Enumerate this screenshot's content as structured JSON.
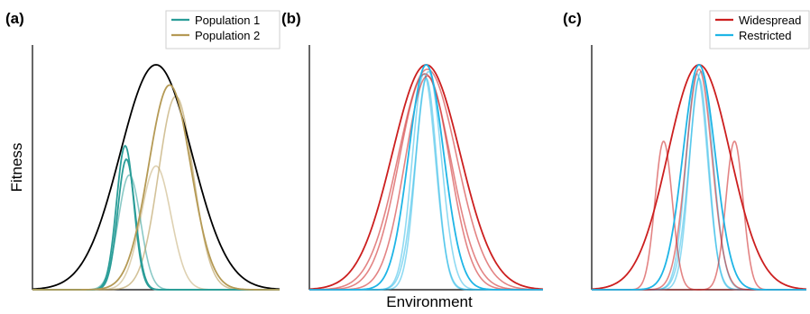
{
  "figure": {
    "ylabel": "Fitness",
    "xlabel": "Environment"
  },
  "colors": {
    "envelope": "#000000",
    "population1": "#2a9d98",
    "population2": "#b59a55",
    "widespread": "#cc1f1f",
    "restricted": "#1fb5e6"
  },
  "chart_data": [
    {
      "panel": "(a)",
      "type": "line",
      "xlim": [
        0,
        1
      ],
      "ylim": [
        0,
        1
      ],
      "grid": false,
      "legend": {
        "placement": "top-right",
        "entries": [
          "Population 1",
          "Population 2"
        ]
      },
      "series": [
        {
          "name": "",
          "color": "#000000",
          "opacity": 1.0,
          "mu": 0.5,
          "sigma": 0.145,
          "amp": 1.0
        },
        {
          "name": "Population 1",
          "color": "#2a9d98",
          "opacity": 1.0,
          "mu": 0.375,
          "sigma": 0.035,
          "amp": 0.64
        },
        {
          "name": "",
          "color": "#2a9d98",
          "opacity": 1.0,
          "mu": 0.38,
          "sigma": 0.035,
          "amp": 0.58
        },
        {
          "name": "",
          "color": "#2a9d98",
          "opacity": 0.55,
          "mu": 0.392,
          "sigma": 0.045,
          "amp": 0.51
        },
        {
          "name": "Population 2",
          "color": "#b59a55",
          "opacity": 1.0,
          "mu": 0.555,
          "sigma": 0.085,
          "amp": 0.91
        },
        {
          "name": "",
          "color": "#b59a55",
          "opacity": 0.6,
          "mu": 0.58,
          "sigma": 0.07,
          "amp": 0.86
        },
        {
          "name": "",
          "color": "#b59a55",
          "opacity": 0.45,
          "mu": 0.5,
          "sigma": 0.06,
          "amp": 0.55
        }
      ]
    },
    {
      "panel": "(b)",
      "type": "line",
      "xlim": [
        0,
        1
      ],
      "ylim": [
        0,
        1
      ],
      "grid": false,
      "legend": null,
      "series": [
        {
          "name": "",
          "color": "#cc1f1f",
          "opacity": 1.0,
          "mu": 0.5,
          "sigma": 0.145,
          "amp": 1.0
        },
        {
          "name": "",
          "color": "#cc1f1f",
          "opacity": 0.55,
          "mu": 0.505,
          "sigma": 0.125,
          "amp": 0.98
        },
        {
          "name": "",
          "color": "#cc1f1f",
          "opacity": 0.55,
          "mu": 0.495,
          "sigma": 0.11,
          "amp": 0.96
        },
        {
          "name": "",
          "color": "#cc1f1f",
          "opacity": 0.55,
          "mu": 0.505,
          "sigma": 0.095,
          "amp": 0.95
        },
        {
          "name": "",
          "color": "#1fb5e6",
          "opacity": 1.0,
          "mu": 0.5,
          "sigma": 0.075,
          "amp": 1.0
        },
        {
          "name": "",
          "color": "#1fb5e6",
          "opacity": 0.5,
          "mu": 0.51,
          "sigma": 0.055,
          "amp": 0.97
        },
        {
          "name": "",
          "color": "#1fb5e6",
          "opacity": 0.5,
          "mu": 0.49,
          "sigma": 0.05,
          "amp": 0.96
        },
        {
          "name": "",
          "color": "#1fb5e6",
          "opacity": 0.5,
          "mu": 0.5,
          "sigma": 0.045,
          "amp": 0.94
        }
      ]
    },
    {
      "panel": "(c)",
      "type": "line",
      "xlim": [
        0,
        1
      ],
      "ylim": [
        0,
        1
      ],
      "grid": false,
      "legend": {
        "placement": "top-right",
        "entries": [
          "Widespread",
          "Restricted"
        ]
      },
      "series": [
        {
          "name": "Widespread",
          "color": "#cc1f1f",
          "opacity": 1.0,
          "mu": 0.5,
          "sigma": 0.145,
          "amp": 1.0
        },
        {
          "name": "",
          "color": "#cc1f1f",
          "opacity": 0.55,
          "mu": 0.335,
          "sigma": 0.04,
          "amp": 0.66
        },
        {
          "name": "",
          "color": "#cc1f1f",
          "opacity": 0.55,
          "mu": 0.665,
          "sigma": 0.04,
          "amp": 0.66
        },
        {
          "name": "",
          "color": "#cc1f1f",
          "opacity": 0.55,
          "mu": 0.5,
          "sigma": 0.06,
          "amp": 0.98
        },
        {
          "name": "Restricted",
          "color": "#1fb5e6",
          "opacity": 1.0,
          "mu": 0.5,
          "sigma": 0.075,
          "amp": 1.0
        },
        {
          "name": "",
          "color": "#1fb5e6",
          "opacity": 0.5,
          "mu": 0.51,
          "sigma": 0.055,
          "amp": 0.97
        },
        {
          "name": "",
          "color": "#1fb5e6",
          "opacity": 0.5,
          "mu": 0.49,
          "sigma": 0.05,
          "amp": 0.96
        },
        {
          "name": "",
          "color": "#1fb5e6",
          "opacity": 0.5,
          "mu": 0.5,
          "sigma": 0.045,
          "amp": 0.94
        }
      ]
    }
  ]
}
